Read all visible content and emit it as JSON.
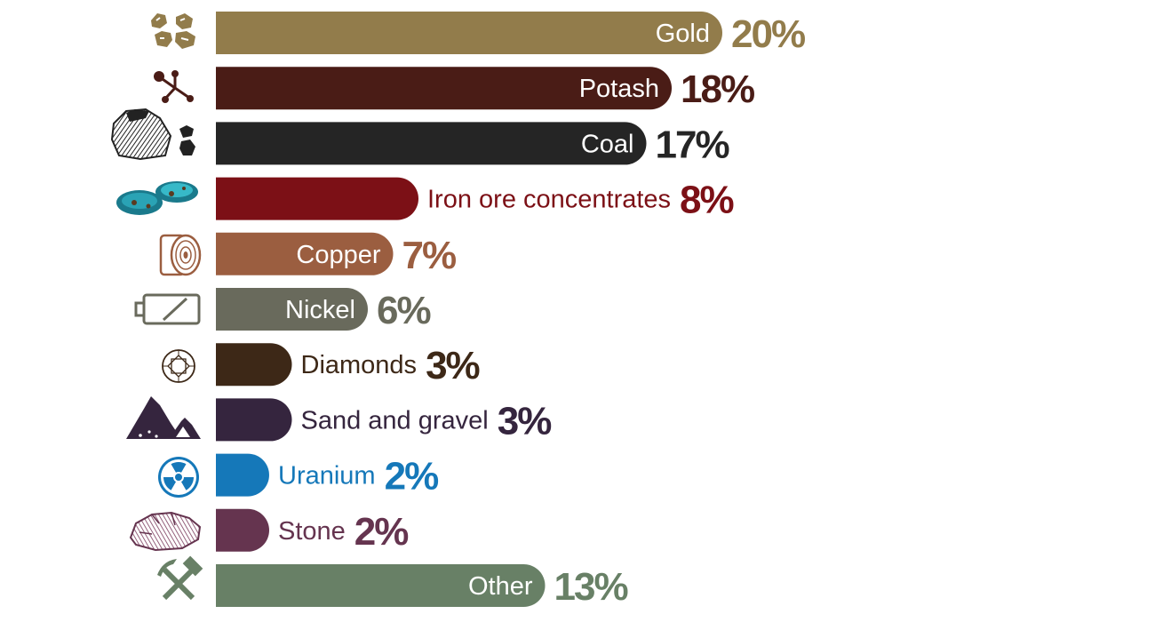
{
  "chart_data": {
    "type": "bar",
    "orientation": "horizontal",
    "categories": [
      "Gold",
      "Potash",
      "Coal",
      "Iron ore concentrates",
      "Copper",
      "Nickel",
      "Diamonds",
      "Sand and gravel",
      "Uranium",
      "Stone",
      "Other"
    ],
    "values": [
      20,
      18,
      17,
      8,
      7,
      6,
      3,
      3,
      2,
      2,
      13
    ],
    "value_labels": [
      "20%",
      "18%",
      "17%",
      "8%",
      "7%",
      "6%",
      "3%",
      "3%",
      "2%",
      "2%",
      "13%"
    ],
    "unit": "%",
    "colors": [
      "#927c4b",
      "#4a1c16",
      "#252525",
      "#7c1016",
      "#9b5e40",
      "#696a5c",
      "#3d2817",
      "#35253e",
      "#1578b9",
      "#65344f",
      "#688066"
    ],
    "icons": [
      "gold-nuggets-icon",
      "molecule-icon",
      "coal-lumps-icon",
      "iron-ore-rocks-icon",
      "copper-coil-icon",
      "battery-icon",
      "diamond-icon",
      "sand-gravel-piles-icon",
      "radiation-icon",
      "stone-rock-icon",
      "pick-hammer-icon"
    ],
    "label_inside": [
      true,
      true,
      true,
      false,
      true,
      true,
      false,
      false,
      false,
      false,
      true
    ],
    "grid": false,
    "legend": "none",
    "title": "",
    "xlabel": "",
    "ylabel": ""
  }
}
